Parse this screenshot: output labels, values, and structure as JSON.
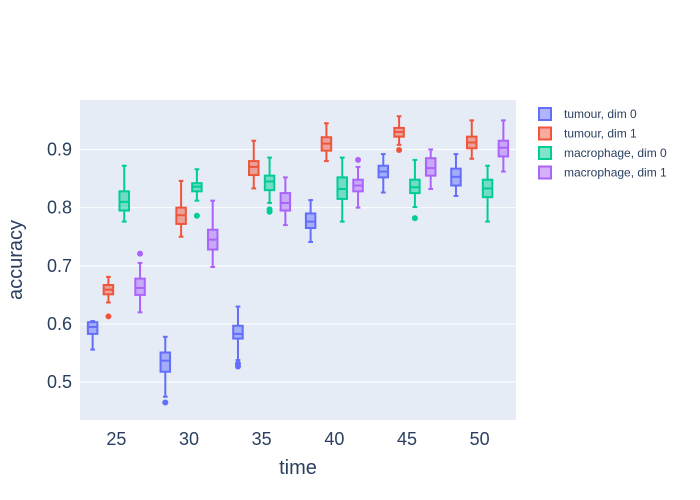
{
  "chart_data": {
    "type": "box",
    "xlabel": "time",
    "ylabel": "accuracy",
    "x_ticks": [
      "25",
      "30",
      "35",
      "40",
      "45",
      "50"
    ],
    "y_ticks": [
      "0.5",
      "0.6",
      "0.7",
      "0.8",
      "0.9"
    ],
    "xlim": [
      22.5,
      52.5
    ],
    "ylim": [
      0.435,
      0.985
    ],
    "grid": true,
    "legend_position": "top-right",
    "plot_background": "#e5ecf6",
    "series": [
      {
        "name": "tumour, dim 0",
        "color": "#636efa",
        "boxes": [
          {
            "x": 25,
            "min": 0.556,
            "q1": 0.583,
            "median": 0.595,
            "q3": 0.603,
            "max": 0.605,
            "outliers": []
          },
          {
            "x": 30,
            "min": 0.475,
            "q1": 0.518,
            "median": 0.537,
            "q3": 0.551,
            "max": 0.578,
            "outliers": [
              0.465
            ]
          },
          {
            "x": 35,
            "min": 0.538,
            "q1": 0.575,
            "median": 0.583,
            "q3": 0.597,
            "max": 0.63,
            "outliers": [
              0.527,
              0.532
            ]
          },
          {
            "x": 40,
            "min": 0.741,
            "q1": 0.765,
            "median": 0.776,
            "q3": 0.79,
            "max": 0.813,
            "outliers": []
          },
          {
            "x": 45,
            "min": 0.826,
            "q1": 0.852,
            "median": 0.862,
            "q3": 0.872,
            "max": 0.892,
            "outliers": []
          },
          {
            "x": 50,
            "min": 0.82,
            "q1": 0.838,
            "median": 0.853,
            "q3": 0.867,
            "max": 0.892,
            "outliers": []
          }
        ]
      },
      {
        "name": "tumour, dim 1",
        "color": "#ef553b",
        "boxes": [
          {
            "x": 25,
            "min": 0.637,
            "q1": 0.651,
            "median": 0.659,
            "q3": 0.667,
            "max": 0.681,
            "outliers": [
              0.613
            ]
          },
          {
            "x": 30,
            "min": 0.75,
            "q1": 0.772,
            "median": 0.787,
            "q3": 0.8,
            "max": 0.846,
            "outliers": []
          },
          {
            "x": 35,
            "min": 0.833,
            "q1": 0.856,
            "median": 0.87,
            "q3": 0.88,
            "max": 0.915,
            "outliers": []
          },
          {
            "x": 40,
            "min": 0.88,
            "q1": 0.898,
            "median": 0.91,
            "q3": 0.921,
            "max": 0.945,
            "outliers": []
          },
          {
            "x": 45,
            "min": 0.908,
            "q1": 0.922,
            "median": 0.93,
            "q3": 0.937,
            "max": 0.957,
            "outliers": [
              0.899
            ]
          },
          {
            "x": 50,
            "min": 0.884,
            "q1": 0.902,
            "median": 0.912,
            "q3": 0.922,
            "max": 0.95,
            "outliers": []
          }
        ]
      },
      {
        "name": "macrophage, dim 0",
        "color": "#00cc96",
        "boxes": [
          {
            "x": 25,
            "min": 0.776,
            "q1": 0.795,
            "median": 0.81,
            "q3": 0.828,
            "max": 0.872,
            "outliers": []
          },
          {
            "x": 30,
            "min": 0.812,
            "q1": 0.828,
            "median": 0.836,
            "q3": 0.842,
            "max": 0.866,
            "outliers": [
              0.786
            ]
          },
          {
            "x": 35,
            "min": 0.808,
            "q1": 0.83,
            "median": 0.845,
            "q3": 0.855,
            "max": 0.886,
            "outliers": [
              0.793,
              0.797
            ]
          },
          {
            "x": 40,
            "min": 0.776,
            "q1": 0.815,
            "median": 0.832,
            "q3": 0.852,
            "max": 0.886,
            "outliers": []
          },
          {
            "x": 45,
            "min": 0.801,
            "q1": 0.825,
            "median": 0.835,
            "q3": 0.848,
            "max": 0.882,
            "outliers": [
              0.782
            ]
          },
          {
            "x": 50,
            "min": 0.776,
            "q1": 0.818,
            "median": 0.833,
            "q3": 0.848,
            "max": 0.872,
            "outliers": []
          }
        ]
      },
      {
        "name": "macrophage, dim 1",
        "color": "#ab63fa",
        "boxes": [
          {
            "x": 25,
            "min": 0.62,
            "q1": 0.65,
            "median": 0.662,
            "q3": 0.678,
            "max": 0.705,
            "outliers": [
              0.721
            ]
          },
          {
            "x": 30,
            "min": 0.698,
            "q1": 0.728,
            "median": 0.745,
            "q3": 0.762,
            "max": 0.812,
            "outliers": []
          },
          {
            "x": 35,
            "min": 0.77,
            "q1": 0.795,
            "median": 0.808,
            "q3": 0.825,
            "max": 0.852,
            "outliers": []
          },
          {
            "x": 40,
            "min": 0.8,
            "q1": 0.828,
            "median": 0.838,
            "q3": 0.848,
            "max": 0.87,
            "outliers": [
              0.882
            ]
          },
          {
            "x": 45,
            "min": 0.832,
            "q1": 0.855,
            "median": 0.868,
            "q3": 0.885,
            "max": 0.9,
            "outliers": []
          },
          {
            "x": 50,
            "min": 0.862,
            "q1": 0.888,
            "median": 0.903,
            "q3": 0.915,
            "max": 0.95,
            "outliers": []
          }
        ]
      }
    ]
  }
}
